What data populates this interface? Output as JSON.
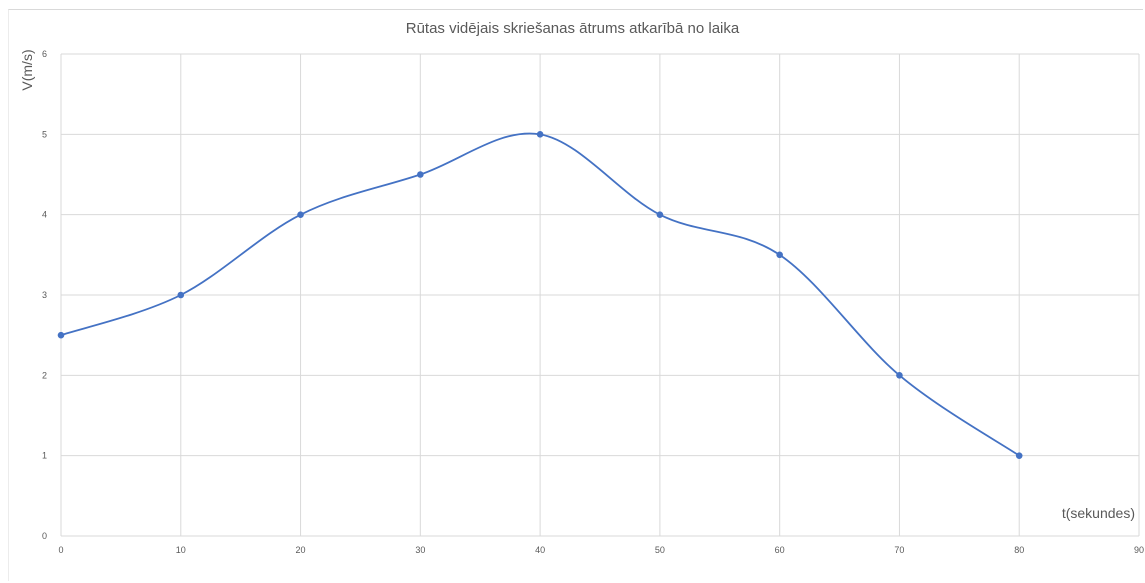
{
  "chart_data": {
    "type": "line",
    "title": "Rūtas vidējais skriešanas ātrums atkarībā no laika",
    "xlabel": "t(sekundes)",
    "ylabel": "V(m/s)",
    "xlim": [
      0,
      90
    ],
    "ylim": [
      0,
      6
    ],
    "xticks": [
      0,
      10,
      20,
      30,
      40,
      50,
      60,
      70,
      80,
      90
    ],
    "yticks": [
      0,
      1,
      2,
      3,
      4,
      5,
      6
    ],
    "grid": true,
    "smooth": true,
    "series": [
      {
        "x": [
          0,
          10,
          20,
          30,
          40,
          50,
          60,
          70,
          80
        ],
        "values": [
          2.5,
          3,
          4,
          4.5,
          5,
          4,
          3.5,
          2,
          1
        ],
        "color": "#4472c4"
      }
    ]
  }
}
